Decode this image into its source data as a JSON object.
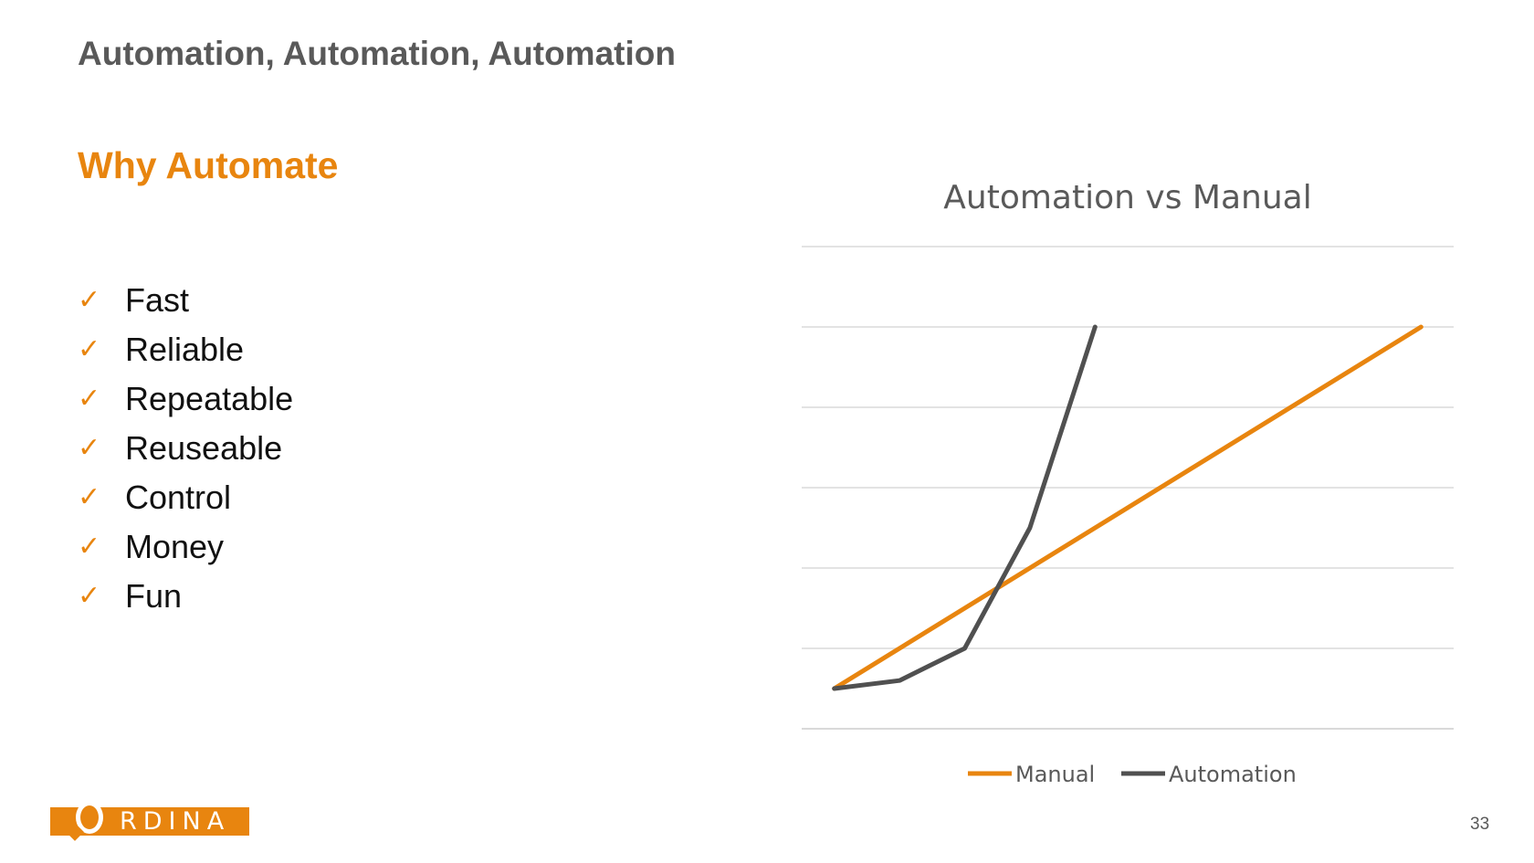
{
  "slide": {
    "title": "Automation, Automation, Automation",
    "heading": "Why Automate",
    "page_number": "33"
  },
  "checklist": {
    "icon": "check-icon",
    "items": [
      "Fast",
      "Reliable",
      "Repeatable",
      "Reuseable",
      "Control",
      "Money",
      "Fun"
    ]
  },
  "logo": {
    "text": "RDINA",
    "color": "#E8850F"
  },
  "chart_data": {
    "type": "line",
    "title": "Automation vs Manual",
    "xlabel": "",
    "ylabel": "",
    "x": [
      1,
      2,
      3,
      4,
      5,
      6,
      7,
      8,
      9,
      10
    ],
    "ylim": [
      0,
      6
    ],
    "grid": true,
    "y_tick_labels_visible": false,
    "x_tick_labels_visible": false,
    "legend": "bottom",
    "series": [
      {
        "name": "Manual",
        "color": "#E8850F",
        "values": [
          0.5,
          1.0,
          1.5,
          2.0,
          2.5,
          3.0,
          3.5,
          4.0,
          4.5,
          5.0
        ]
      },
      {
        "name": "Automation",
        "color": "#505050",
        "values": [
          0.5,
          0.6,
          1.0,
          2.5,
          5.0,
          null,
          null,
          null,
          null,
          null
        ]
      }
    ]
  }
}
